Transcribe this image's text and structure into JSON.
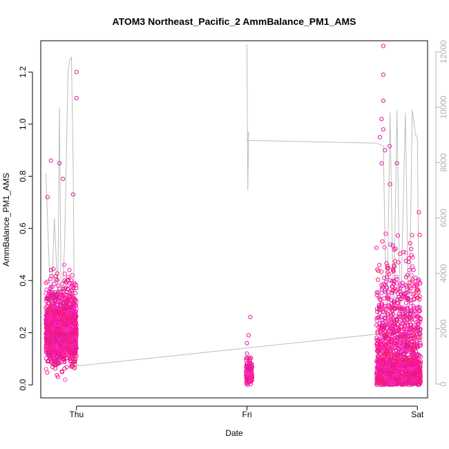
{
  "chart_data": {
    "type": "scatter",
    "title": "ATOM3 Northeast_Pacific_2 AmmBalance_PM1_AMS",
    "xlabel": "Date",
    "ylabel": "AmmBalance_PM1_AMS",
    "x_ticks": [
      {
        "label": "Thu",
        "value": 0
      },
      {
        "label": "Fri",
        "value": 1
      },
      {
        "label": "Sat",
        "value": 2
      }
    ],
    "xlim": [
      -0.21,
      2.06
    ],
    "ylim": [
      -0.05,
      1.32
    ],
    "y_ticks": [
      "0.0",
      "0.2",
      "0.4",
      "0.6",
      "0.8",
      "1.0",
      "1.2"
    ],
    "y_tick_values": [
      0,
      0.2,
      0.4,
      0.6,
      0.8,
      1.0,
      1.2
    ],
    "y2lim": [
      -500,
      12400
    ],
    "y2_ticks": [
      "0",
      "2000",
      "4000",
      "6000",
      "8000",
      "10000",
      "12000"
    ],
    "y2_tick_values": [
      0,
      2000,
      4000,
      6000,
      8000,
      10000,
      12000
    ],
    "marker_colors": [
      "#ff1aa8",
      "#e0169c",
      "#f5157a",
      "#ff1a6a",
      "#d91f9f",
      "#ff33cc"
    ],
    "secondary_line_color": "#bdbdbd",
    "clusters": [
      {
        "x_start": -0.18,
        "x_end": 0.0,
        "n": 1400,
        "y_center": 0.2,
        "y_spread": 0.09,
        "outliers": [
          [
            -0.17,
            0.72
          ],
          [
            -0.15,
            0.86
          ],
          [
            -0.1,
            0.85
          ],
          [
            -0.08,
            0.79
          ],
          [
            0.0,
            1.2
          ],
          [
            0.0,
            1.1
          ],
          [
            -0.02,
            0.73
          ]
        ]
      },
      {
        "x_start": 0.995,
        "x_end": 1.03,
        "n": 260,
        "y_center": 0.04,
        "y_spread": 0.025,
        "outliers": [
          [
            1.02,
            0.26
          ],
          [
            1.01,
            0.19
          ],
          [
            1.0,
            0.16
          ],
          [
            1.0,
            0.12
          ]
        ]
      },
      {
        "x_start": 1.76,
        "x_end": 2.02,
        "n": 1500,
        "y_center": 0.1,
        "y_spread": 0.17,
        "outliers": [
          [
            1.8,
            1.3
          ],
          [
            1.8,
            1.19
          ],
          [
            1.8,
            1.09
          ],
          [
            1.79,
            1.02
          ],
          [
            1.8,
            0.98
          ],
          [
            1.78,
            0.95
          ],
          [
            1.81,
            0.9
          ],
          [
            1.79,
            0.85
          ],
          [
            1.88,
            0.85
          ],
          [
            1.84,
            0.77
          ]
        ]
      }
    ],
    "secondary_series": {
      "name": "",
      "segments": [
        [
          [
            -0.18,
            7600
          ],
          [
            -0.15,
            2500
          ],
          [
            -0.13,
            6000
          ],
          [
            -0.11,
            3200
          ],
          [
            -0.1,
            10000
          ],
          [
            -0.09,
            2500
          ],
          [
            -0.07,
            5000
          ],
          [
            -0.05,
            11300
          ],
          [
            -0.04,
            11700
          ],
          [
            -0.03,
            11800
          ],
          [
            -0.02,
            8000
          ],
          [
            -0.01,
            500
          ],
          [
            0.0,
            650
          ]
        ],
        [
          [
            0.0,
            650
          ],
          [
            1.76,
            1800
          ]
        ],
        [
          [
            0.995,
            12250
          ],
          [
            1.0,
            12250
          ],
          [
            1.005,
            7000
          ],
          [
            1.01,
            9100
          ],
          [
            1.0,
            8800
          ],
          [
            1.76,
            8700
          ]
        ],
        [
          [
            1.76,
            8700
          ],
          [
            1.8,
            8600
          ],
          [
            1.82,
            1800
          ],
          [
            1.84,
            9800
          ],
          [
            1.86,
            2000
          ],
          [
            1.88,
            9900
          ],
          [
            1.9,
            2100
          ],
          [
            1.93,
            9800
          ],
          [
            1.95,
            1500
          ],
          [
            1.97,
            9900
          ],
          [
            1.99,
            9000
          ],
          [
            2.0,
            8900
          ],
          [
            2.01,
            2400
          ],
          [
            2.02,
            1500
          ]
        ]
      ]
    }
  }
}
